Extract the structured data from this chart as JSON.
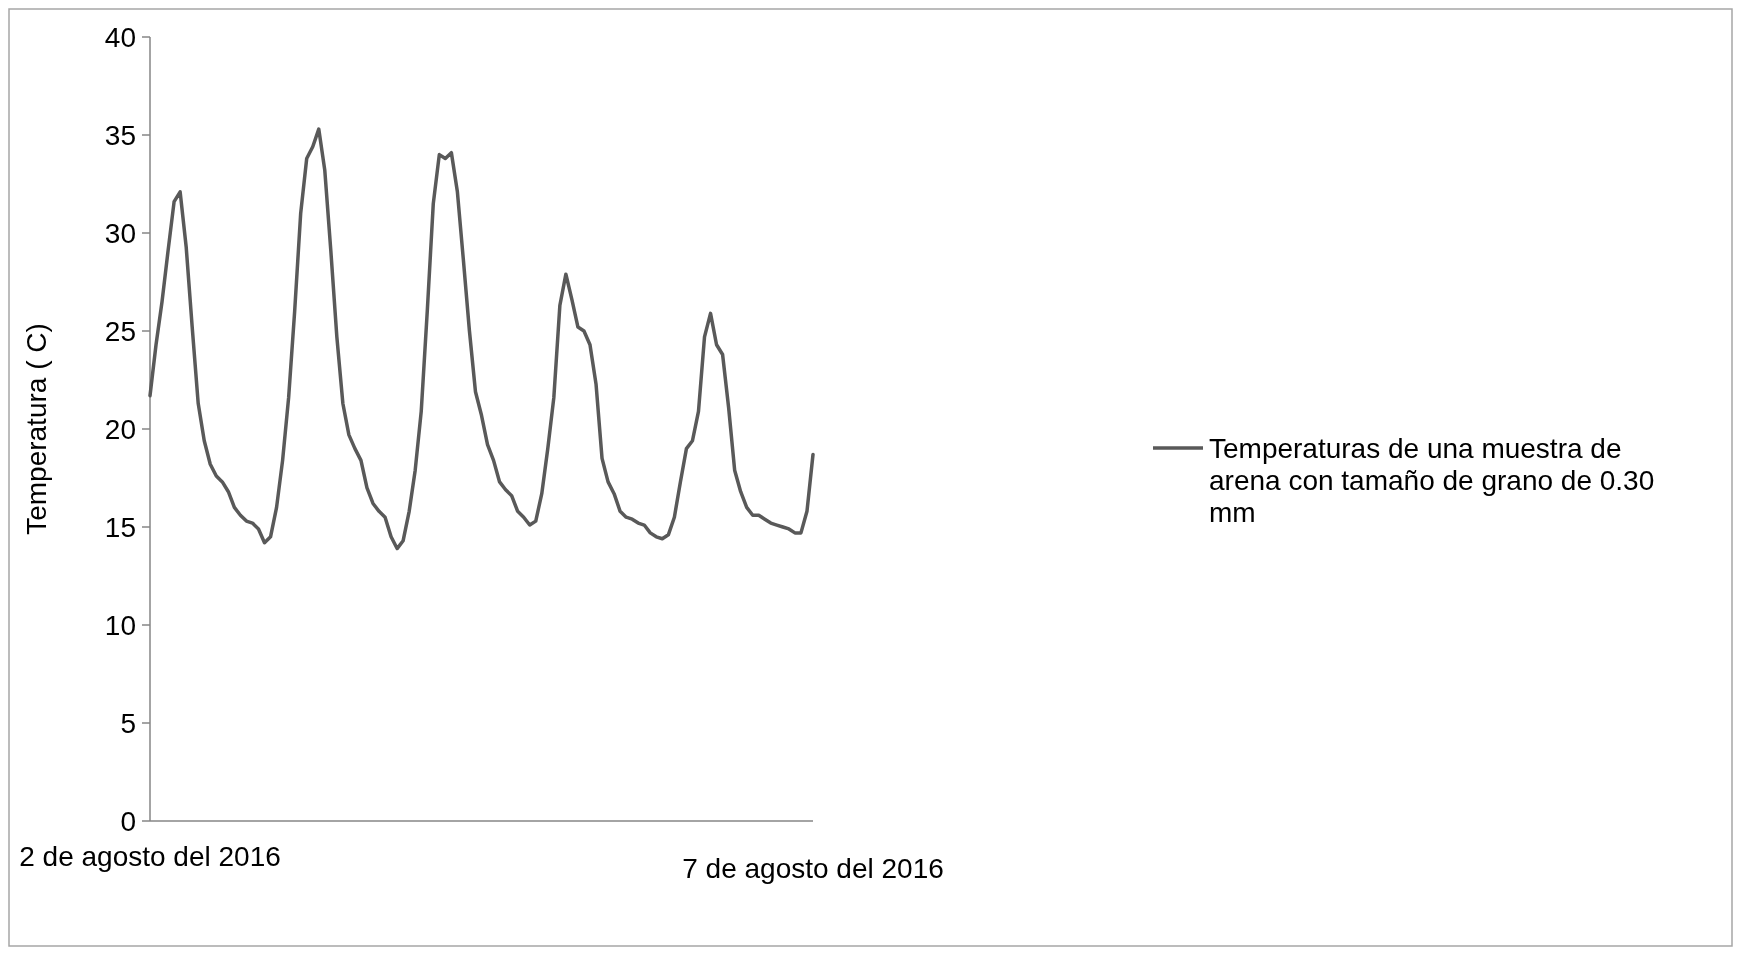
{
  "chart_data": {
    "type": "line",
    "ylabel": "Temperatura ( C)",
    "categories": [
      "2 de agosto del 2016",
      null,
      null,
      null,
      null,
      null,
      null,
      null,
      null,
      null,
      null,
      null,
      null,
      null,
      null,
      null,
      null,
      null,
      null,
      null,
      null,
      null,
      null,
      null,
      null,
      null,
      null,
      null,
      null,
      null,
      null,
      null,
      null,
      null,
      null,
      null,
      null,
      null,
      null,
      null,
      null,
      null,
      null,
      null,
      null,
      null,
      null,
      null,
      null,
      null,
      null,
      null,
      null,
      null,
      null,
      null,
      null,
      null,
      null,
      null,
      null,
      null,
      null,
      null,
      null,
      null,
      null,
      null,
      null,
      null,
      null,
      null,
      null,
      null,
      null,
      null,
      null,
      null,
      null,
      null,
      null,
      null,
      null,
      null,
      null,
      null,
      null,
      null,
      null,
      null,
      null,
      null,
      null,
      null,
      null,
      null,
      null,
      null,
      null,
      null,
      null,
      null,
      null,
      null,
      null,
      null,
      null,
      null,
      null,
      null,
      "7 de agosto del 2016"
    ],
    "series": [
      {
        "name": "Temperaturas de una muestra de arena con tamaño de grano de 0.30 mm",
        "color": "#595959",
        "values": [
          21.7,
          24.3,
          26.5,
          29.1,
          31.6,
          32.1,
          29.3,
          25.2,
          21.3,
          19.4,
          18.2,
          17.6,
          17.3,
          16.8,
          16.0,
          15.6,
          15.3,
          15.2,
          14.9,
          14.2,
          14.5,
          16.0,
          18.4,
          21.6,
          26.0,
          31.0,
          33.8,
          34.4,
          35.3,
          33.2,
          29.1,
          24.7,
          21.3,
          19.7,
          19.0,
          18.4,
          17.0,
          16.2,
          15.8,
          15.5,
          14.5,
          13.9,
          14.3,
          15.8,
          17.9,
          20.9,
          26.0,
          31.5,
          34.0,
          33.8,
          34.1,
          32.1,
          28.6,
          25.0,
          21.9,
          20.7,
          19.2,
          18.4,
          17.3,
          16.9,
          16.6,
          15.8,
          15.5,
          15.1,
          15.3,
          16.7,
          19.0,
          21.6,
          26.3,
          27.9,
          26.6,
          25.2,
          25.0,
          24.3,
          22.3,
          18.5,
          17.3,
          16.7,
          15.8,
          15.5,
          15.4,
          15.2,
          15.1,
          14.7,
          14.5,
          14.4,
          14.6,
          15.5,
          17.3,
          19.0,
          19.4,
          20.9,
          24.7,
          25.9,
          24.3,
          23.8,
          21.1,
          17.9,
          16.8,
          16.0,
          15.6,
          15.6,
          15.4,
          15.2,
          15.1,
          15.0,
          14.9,
          14.7,
          14.7,
          15.8,
          18.7
        ]
      }
    ],
    "ylim": [
      0,
      40
    ],
    "yticks": [
      0,
      5,
      10,
      15,
      20,
      25,
      30,
      35,
      40
    ],
    "legend": "right",
    "grid": false
  }
}
